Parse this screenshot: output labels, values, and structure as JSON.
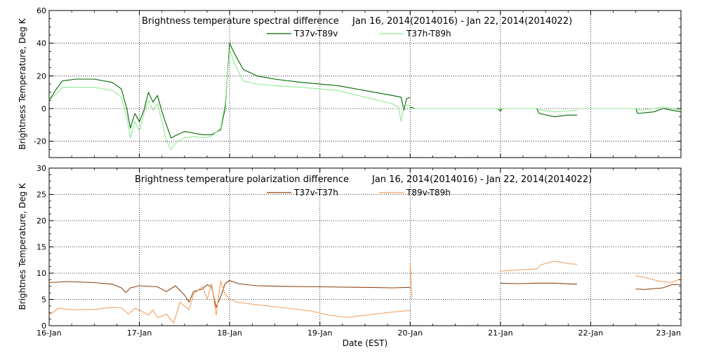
{
  "figure": {
    "xlabel": "Date (EST)",
    "x_tick_labels": [
      "16-Jan",
      "17-Jan",
      "18-Jan",
      "19-Jan",
      "20-Jan",
      "21-Jan",
      "22-Jan",
      "23-Jan"
    ]
  },
  "chart_data": [
    {
      "type": "line",
      "title": "Brightness temperature spectral difference",
      "subtitle": "Jan 16, 2014(2014016) - Jan 22, 2014(2014022)",
      "ylabel": "Brightness Temperature, Deg K",
      "xlabel": "",
      "xlim": [
        0,
        7
      ],
      "ylim": [
        -30,
        60
      ],
      "yticks": [
        -20,
        0,
        20,
        40,
        60
      ],
      "ytick_labels": [
        "-20",
        "0",
        "20",
        "40",
        "60"
      ],
      "grid": true,
      "legend": "top-center",
      "series": [
        {
          "name": "T37v-T89v",
          "color": "#006400",
          "segments": [
            [
              [
                0.0,
                5
              ],
              [
                0.08,
                12
              ],
              [
                0.15,
                17
              ],
              [
                0.3,
                18
              ],
              [
                0.5,
                18
              ],
              [
                0.7,
                16
              ],
              [
                0.8,
                12
              ],
              [
                0.86,
                0
              ],
              [
                0.9,
                -12
              ],
              [
                0.95,
                -3
              ],
              [
                1.0,
                -8
              ],
              [
                1.05,
                -1
              ],
              [
                1.1,
                10
              ],
              [
                1.15,
                4
              ],
              [
                1.2,
                8
              ],
              [
                1.25,
                -2
              ],
              [
                1.3,
                -10
              ],
              [
                1.35,
                -18
              ],
              [
                1.42,
                -16
              ],
              [
                1.5,
                -14
              ],
              [
                1.6,
                -15
              ],
              [
                1.7,
                -16
              ],
              [
                1.8,
                -16
              ],
              [
                1.9,
                -13
              ],
              [
                1.95,
                0
              ],
              [
                2.0,
                40
              ],
              [
                2.05,
                34
              ],
              [
                2.15,
                24
              ],
              [
                2.3,
                20
              ],
              [
                2.5,
                18
              ],
              [
                2.8,
                16
              ],
              [
                3.2,
                14
              ],
              [
                3.5,
                11
              ],
              [
                3.8,
                8
              ],
              [
                3.9,
                7
              ],
              [
                3.93,
                -1
              ],
              [
                3.96,
                6
              ],
              [
                4.0,
                7
              ]
            ],
            [
              [
                4.0,
                1
              ],
              [
                4.05,
                0
              ],
              [
                4.97,
                0
              ],
              [
                5.0,
                -1.5
              ],
              [
                5.02,
                0
              ],
              [
                5.4,
                0
              ],
              [
                5.43,
                -3
              ],
              [
                5.6,
                -5
              ],
              [
                5.75,
                -4
              ],
              [
                5.85,
                -4
              ]
            ],
            [
              [
                5.9,
                0
              ],
              [
                6.5,
                0
              ],
              [
                6.52,
                -3
              ],
              [
                6.7,
                -2
              ],
              [
                6.8,
                0
              ],
              [
                6.9,
                -1
              ],
              [
                7.0,
                -2
              ]
            ]
          ]
        },
        {
          "name": "T37h-T89h",
          "color": "#8FEB8F",
          "segments": [
            [
              [
                0.0,
                5
              ],
              [
                0.08,
                9
              ],
              [
                0.15,
                13
              ],
              [
                0.3,
                13
              ],
              [
                0.5,
                13
              ],
              [
                0.7,
                11
              ],
              [
                0.8,
                7
              ],
              [
                0.86,
                -5
              ],
              [
                0.9,
                -18
              ],
              [
                0.95,
                -8
              ],
              [
                1.0,
                -14
              ],
              [
                1.05,
                -3
              ],
              [
                1.1,
                5
              ],
              [
                1.15,
                -1
              ],
              [
                1.2,
                3
              ],
              [
                1.25,
                -8
              ],
              [
                1.3,
                -20
              ],
              [
                1.35,
                -25
              ],
              [
                1.42,
                -20
              ],
              [
                1.5,
                -18
              ],
              [
                1.6,
                -17
              ],
              [
                1.7,
                -18
              ],
              [
                1.8,
                -17
              ],
              [
                1.9,
                -12
              ],
              [
                1.95,
                3
              ],
              [
                2.0,
                36
              ],
              [
                2.05,
                28
              ],
              [
                2.15,
                17
              ],
              [
                2.3,
                15
              ],
              [
                2.5,
                14
              ],
              [
                2.8,
                13
              ],
              [
                3.2,
                11
              ],
              [
                3.5,
                7
              ],
              [
                3.8,
                3
              ],
              [
                3.87,
                1
              ],
              [
                3.9,
                -8
              ],
              [
                3.93,
                2
              ],
              [
                4.0,
                2
              ]
            ],
            [
              [
                4.0,
                0
              ],
              [
                5.4,
                0
              ],
              [
                5.45,
                -1
              ],
              [
                5.6,
                -2
              ],
              [
                5.75,
                -1.5
              ],
              [
                5.85,
                -1
              ]
            ],
            [
              [
                5.9,
                0
              ],
              [
                6.5,
                0
              ],
              [
                6.55,
                -1
              ],
              [
                6.7,
                0
              ],
              [
                6.8,
                1
              ],
              [
                6.9,
                0
              ],
              [
                7.0,
                -1
              ]
            ]
          ]
        }
      ]
    },
    {
      "type": "line",
      "title": "Brightness temperature polarization difference",
      "subtitle": "Jan 16, 2014(2014016) - Jan 22, 2014(2014022)",
      "ylabel": "Brightnes Temperature, Deg K",
      "xlabel": "Date (EST)",
      "xlim": [
        0,
        7
      ],
      "ylim": [
        0,
        30
      ],
      "yticks": [
        0,
        5,
        10,
        15,
        20,
        25,
        30
      ],
      "ytick_labels": [
        "0",
        "5",
        "10",
        "15",
        "20",
        "25",
        "30"
      ],
      "grid": true,
      "legend": "top-center",
      "series": [
        {
          "name": "T37v-T37h",
          "color": "#8B4513",
          "segments": [
            [
              [
                0.0,
                8.2
              ],
              [
                0.2,
                8.4
              ],
              [
                0.5,
                8.2
              ],
              [
                0.7,
                7.9
              ],
              [
                0.8,
                7.2
              ],
              [
                0.85,
                6.3
              ],
              [
                0.9,
                7.2
              ],
              [
                1.0,
                7.6
              ],
              [
                1.2,
                7.4
              ],
              [
                1.3,
                6.5
              ],
              [
                1.4,
                7.6
              ],
              [
                1.5,
                5.8
              ],
              [
                1.55,
                4.5
              ],
              [
                1.6,
                6.5
              ],
              [
                1.7,
                7.0
              ],
              [
                1.75,
                7.8
              ],
              [
                1.8,
                7.4
              ],
              [
                1.85,
                3.5
              ],
              [
                1.9,
                5.5
              ],
              [
                1.95,
                8.0
              ],
              [
                2.0,
                8.6
              ],
              [
                2.1,
                8.0
              ],
              [
                2.3,
                7.6
              ],
              [
                2.6,
                7.5
              ],
              [
                3.0,
                7.4
              ],
              [
                3.5,
                7.3
              ],
              [
                3.8,
                7.2
              ],
              [
                4.0,
                7.3
              ]
            ],
            [
              [
                5.0,
                8.1
              ],
              [
                5.2,
                8.0
              ],
              [
                5.4,
                8.1
              ],
              [
                5.6,
                8.1
              ],
              [
                5.85,
                7.9
              ]
            ],
            [
              [
                6.5,
                7.0
              ],
              [
                6.6,
                6.9
              ],
              [
                6.8,
                7.2
              ],
              [
                6.9,
                7.8
              ],
              [
                7.0,
                7.8
              ]
            ]
          ]
        },
        {
          "name": "T89v-T89h",
          "color": "#F0A060",
          "segments": [
            [
              [
                0.0,
                2.0
              ],
              [
                0.1,
                3.3
              ],
              [
                0.3,
                3.0
              ],
              [
                0.5,
                3.1
              ],
              [
                0.7,
                3.5
              ],
              [
                0.8,
                3.4
              ],
              [
                0.88,
                2.2
              ],
              [
                0.95,
                3.3
              ],
              [
                1.0,
                3.0
              ],
              [
                1.1,
                2.0
              ],
              [
                1.15,
                3.0
              ],
              [
                1.2,
                1.5
              ],
              [
                1.3,
                2.2
              ],
              [
                1.38,
                0.5
              ],
              [
                1.45,
                4.5
              ],
              [
                1.55,
                3.0
              ],
              [
                1.6,
                6.0
              ],
              [
                1.7,
                7.5
              ],
              [
                1.75,
                5.0
              ],
              [
                1.8,
                8.0
              ],
              [
                1.85,
                2.0
              ],
              [
                1.9,
                8.5
              ],
              [
                1.95,
                6.0
              ],
              [
                2.0,
                5.0
              ],
              [
                2.1,
                4.4
              ],
              [
                2.3,
                4.0
              ],
              [
                2.6,
                3.4
              ],
              [
                2.9,
                2.8
              ],
              [
                3.1,
                2.0
              ],
              [
                3.3,
                1.6
              ],
              [
                3.6,
                2.2
              ],
              [
                3.8,
                2.6
              ],
              [
                4.0,
                2.9
              ]
            ],
            [
              [
                4.0,
                12
              ],
              [
                4.02,
                5
              ]
            ],
            [
              [
                5.0,
                10.4
              ],
              [
                5.4,
                10.8
              ],
              [
                5.45,
                11.6
              ],
              [
                5.6,
                12.3
              ],
              [
                5.75,
                11.8
              ],
              [
                5.85,
                11.7
              ]
            ],
            [
              [
                6.5,
                9.5
              ],
              [
                6.6,
                9.2
              ],
              [
                6.75,
                8.5
              ],
              [
                6.9,
                8.2
              ],
              [
                7.0,
                9.0
              ]
            ]
          ]
        }
      ]
    }
  ]
}
